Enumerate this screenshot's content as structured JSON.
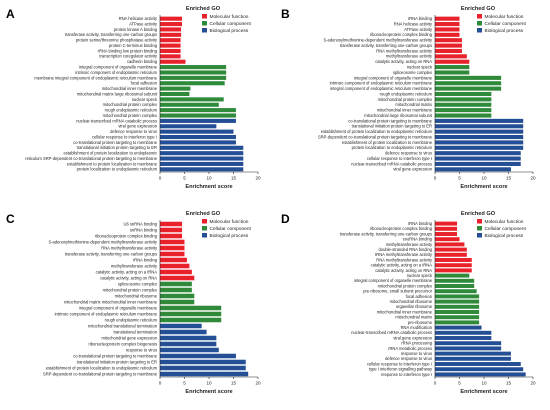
{
  "colors": {
    "molecular": "#e8212b",
    "cellular": "#2f8a3a",
    "biological": "#254f95"
  },
  "legend_labels": [
    "Molecular function",
    "Cellular component",
    "Biological process"
  ],
  "chart_data": [
    {
      "type": "bar",
      "panel_label": "A",
      "title": "Enriched GO",
      "xlabel": "Enrichment score",
      "ylabel": "",
      "xlim": [
        0,
        20
      ],
      "xticks": [
        0,
        5,
        10,
        15,
        20
      ],
      "legend_position": "top-right",
      "grid": false,
      "categories": [
        "RNA helicase activity",
        "ATPase activity",
        "protein kinase A binding",
        "transferase activity, transferring one-carbon groups",
        "protein serine/threonine phosphatase activity",
        "protein C-terminus binding",
        "rRNA binding low protein binding",
        "transcription coregulator activity",
        "cadherin binding",
        "integral component of organelle membrane",
        "intrinsic component of endoplasmic reticulum",
        "membrane integral component of endoplasmic reticulum membrane",
        "focal adhesion",
        "mitochondrial inner membrane",
        "mitochondrial matrix large ribosomal subunit",
        "nuclear speck",
        "mitochondrial protein complex",
        "rough endoplasmic reticulum",
        "mitochondrial protein complex",
        "nuclear-transcribed mRNA catabolic process",
        "viral gene expression",
        "defence response to virus",
        "cellular response to interferon type I",
        "co-translational protein targeting to membrane",
        "translational initiation protein targeting to ER",
        "establishment of protein localization to endoplasmic",
        "reticulum SRP-dependent co-translational protein targeting to membrane",
        "establishment to protein localization to membrane",
        "protein localization to endoplasmic reticulum"
      ],
      "groups": [
        "molecular",
        "molecular",
        "molecular",
        "molecular",
        "molecular",
        "molecular",
        "molecular",
        "molecular",
        "molecular",
        "cellular",
        "cellular",
        "cellular",
        "cellular",
        "cellular",
        "cellular",
        "cellular",
        "cellular",
        "cellular",
        "cellular",
        "biological",
        "biological",
        "biological",
        "biological",
        "biological",
        "biological",
        "biological",
        "biological",
        "biological",
        "biological"
      ],
      "values": [
        4.5,
        4.5,
        4.3,
        4.3,
        4.2,
        4.2,
        4.2,
        4.2,
        5.2,
        13.5,
        13.5,
        13.5,
        13.2,
        6.2,
        6,
        13,
        12,
        15.5,
        15.5,
        15.5,
        11.5,
        15,
        15.5,
        15.5,
        17,
        17,
        17,
        17,
        17
      ]
    },
    {
      "type": "bar",
      "panel_label": "B",
      "title": "Enriched GO",
      "xlabel": "Enrichment score",
      "ylabel": "",
      "xlim": [
        0,
        20
      ],
      "xticks": [
        0,
        5,
        10,
        15,
        20
      ],
      "legend_position": "top-right",
      "grid": false,
      "categories": [
        "rRNA binding",
        "RNA helicase activity",
        "ATPase activity",
        "ribonucleoprotein complex binding",
        "S-adenosylmethionine-dependent methyltransferase activity",
        "transferase activity, transferring one-carbon groups",
        "RNA methyltransferase activity",
        "methyltransferase activity",
        "catalytic activity, acting on RNA",
        "nuclear speck",
        "spliceosome complex",
        "integral component of organelle membrane",
        "intrinsic component of endoplasmic reticulum membrane",
        "integral component of endoplasmic reticulum membrane",
        "rough endoplasmic reticulum",
        "mitochondrial protein complex",
        "mitochondrial matrix",
        "mitochondrial inner membrane",
        "mitochondrial large ribosomal subunit",
        "co-translational protein targeting to membrane",
        "translational initiation protein targeting to ER",
        "establishment of protein localization to endoplasmic reticulum",
        "SRP-dependent co-translational protein targeting to membrane",
        "establishment of protein localization to membrane",
        "protein localization to endoplasmic reticulum",
        "defence response to virus",
        "cellular response to interferon type I",
        "nuclear-transcribed mRNA catabolic process",
        "viral gene expression"
      ],
      "groups": [
        "molecular",
        "molecular",
        "molecular",
        "molecular",
        "molecular",
        "molecular",
        "molecular",
        "molecular",
        "molecular",
        "cellular",
        "cellular",
        "cellular",
        "cellular",
        "cellular",
        "cellular",
        "cellular",
        "cellular",
        "cellular",
        "cellular",
        "biological",
        "biological",
        "biological",
        "biological",
        "biological",
        "biological",
        "biological",
        "biological",
        "biological",
        "biological"
      ],
      "values": [
        5,
        5,
        5,
        5,
        5.5,
        5.5,
        5.5,
        6.5,
        7,
        7,
        7,
        13.5,
        13.5,
        13.5,
        11.5,
        11.5,
        11.5,
        11.5,
        11.5,
        18,
        18,
        18,
        18,
        18,
        18,
        17.5,
        17.5,
        17.5,
        15.5
      ]
    },
    {
      "type": "bar",
      "panel_label": "C",
      "title": "Enriched GO",
      "xlabel": "Enrichment score",
      "ylabel": "",
      "xlim": [
        0,
        20
      ],
      "xticks": [
        0,
        5,
        10,
        15,
        20
      ],
      "legend_position": "top-right",
      "grid": false,
      "categories": [
        "U6 snRNA binding",
        "snRNA binding",
        "ribonucleoprotein complex binding",
        "S-adenosylmethionine-dependent methyltransferase activity",
        "RNA methyltransferase activity",
        "transferase activity, transferring one-carbon groups",
        "rRNA binding",
        "methyltransferase activity",
        "catalytic activity, acting on a tRNA",
        "catalytic activity, acting on RNA",
        "spliceosome complex",
        "mitochondrial protein complex",
        "mitochondrial ribosome",
        "mitochondrial matrix mitochondrial inner membrane",
        "integral component of organelle membrane",
        "intrinsic component of endoplasmic reticulum membrane",
        "rough endoplasmic reticulum",
        "mitochondrial translational termination",
        "translational termination",
        "mitochondrial gene expression",
        "ribonucleoprotein complex biogenesis",
        "response to virus",
        "co-translational protein targeting to membrane",
        "translational initiation protein targeting to ER",
        "establishment of protein localization to endoplasmic reticulum",
        "SRP-dependent co-translational protein targeting to membrane"
      ],
      "groups": [
        "molecular",
        "molecular",
        "molecular",
        "molecular",
        "molecular",
        "molecular",
        "molecular",
        "molecular",
        "molecular",
        "molecular",
        "cellular",
        "cellular",
        "cellular",
        "cellular",
        "cellular",
        "cellular",
        "cellular",
        "biological",
        "biological",
        "biological",
        "biological",
        "biological",
        "biological",
        "biological",
        "biological",
        "biological"
      ],
      "values": [
        4.5,
        4.5,
        4.5,
        5,
        5,
        5,
        5.5,
        6,
        6.5,
        7,
        6.5,
        6.5,
        7,
        7,
        12.5,
        12.5,
        12.5,
        8.5,
        9.5,
        11.5,
        11.5,
        12,
        15.5,
        17.5,
        17.5,
        18
      ]
    },
    {
      "type": "bar",
      "panel_label": "D",
      "title": "Enriched GO",
      "xlabel": "Enrichment score",
      "ylabel": "",
      "xlim": [
        0,
        20
      ],
      "xticks": [
        0,
        5,
        10,
        15,
        20
      ],
      "legend_position": "top-right",
      "grid": false,
      "categories": [
        "rRNA binding",
        "ribonucleoprotein complex binding",
        "transferase activity, transferring one-carbon groups",
        "snoRNA binding",
        "methyltransferase activity",
        "double-stranded RNA binding",
        "tRNA methyltransferase activity",
        "RNA methyltransferase activity",
        "catalytic activity, acting on a tRNA",
        "catalytic activity, acting on RNA",
        "nuclear speck",
        "integral component of organelle membrane",
        "mitochondrial protein complex",
        "pre-ribosome, small subunit precursor",
        "focal adhesion",
        "mitochondrial ribosome",
        "organellar ribosome",
        "mitochondrial inner membrane",
        "mitochondrial matrix",
        "pre-ribosome",
        "RNA modification",
        "nuclear-transcribed mRNA catabolic process",
        "viral gene expression",
        "rRNA processing",
        "rRNA metabolic process",
        "response to virus",
        "defence response to virus",
        "cellular response to interferon type I",
        "type I interferon signalling pathway",
        "response to interferon type I"
      ],
      "groups": [
        "molecular",
        "molecular",
        "molecular",
        "molecular",
        "molecular",
        "molecular",
        "molecular",
        "molecular",
        "molecular",
        "molecular",
        "cellular",
        "cellular",
        "cellular",
        "cellular",
        "cellular",
        "cellular",
        "cellular",
        "cellular",
        "cellular",
        "cellular",
        "biological",
        "biological",
        "biological",
        "biological",
        "biological",
        "biological",
        "biological",
        "biological",
        "biological",
        "biological"
      ],
      "values": [
        4.5,
        4.5,
        4.5,
        5,
        6,
        6.5,
        6.5,
        7.5,
        7.5,
        7.5,
        7,
        8,
        8,
        8.5,
        9,
        9,
        9,
        9,
        9,
        9,
        9.5,
        11.5,
        11.5,
        13.5,
        13.5,
        15.5,
        15.5,
        17.5,
        18,
        18.5
      ]
    }
  ]
}
